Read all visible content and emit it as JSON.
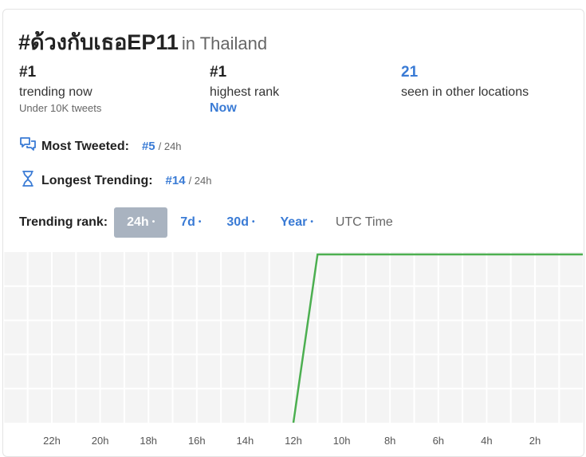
{
  "header": {
    "hashtag": "#ด้วงกับเธอEP11",
    "location": "in Thailand"
  },
  "stats": [
    {
      "value": "#1",
      "label": "trending now",
      "sub": "Under 10K tweets"
    },
    {
      "value": "#1",
      "label": "highest rank",
      "sub": "Now"
    },
    {
      "value": "21",
      "label": "seen in other locations"
    }
  ],
  "most_tweeted": {
    "label": "Most Tweeted:",
    "rank": "#5",
    "period": "/ 24h",
    "icon": "chat-bubbles-icon"
  },
  "longest_trending": {
    "label": "Longest Trending:",
    "rank": "#14",
    "period": "/ 24h",
    "icon": "hourglass-icon"
  },
  "trending_rank": {
    "label": "Trending rank:",
    "tabs": [
      {
        "label": "24h",
        "active": true
      },
      {
        "label": "7d",
        "active": false
      },
      {
        "label": "30d",
        "active": false
      },
      {
        "label": "Year",
        "active": false
      }
    ],
    "dot": "•",
    "timezone": "UTC Time"
  },
  "colors": {
    "accent": "#3a7bd5",
    "line": "#4caf50",
    "active_tab": "#a9b3c0"
  },
  "chart_data": {
    "type": "line",
    "x": [
      "22h",
      "20h",
      "18h",
      "16h",
      "14h",
      "12h",
      "10h",
      "8h",
      "6h",
      "4h",
      "2h"
    ],
    "series": [
      {
        "points": [
          {
            "hours_ago": 12,
            "rank": 50
          },
          {
            "hours_ago": 11,
            "rank": 1
          },
          {
            "hours_ago": 0,
            "rank": 1
          }
        ]
      }
    ],
    "y_range": [
      1,
      50
    ],
    "grid": true,
    "xlabel": "",
    "ylabel": ""
  }
}
